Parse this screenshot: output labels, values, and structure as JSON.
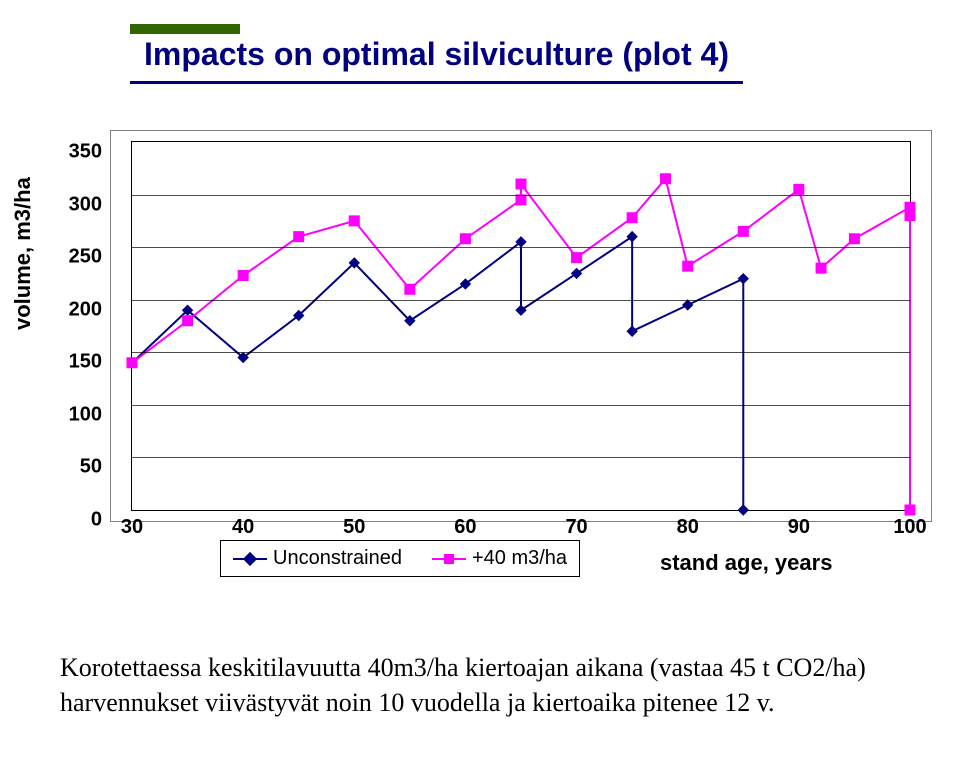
{
  "title": "Impacts on optimal silviculture (plot 4)",
  "title_color": "#000080",
  "title_fontsize": 32,
  "title_underline_color": "#000080",
  "title_accent_bar_color": "#336600",
  "chart": {
    "type": "line",
    "background_color": "#ffffff",
    "border_color": "#808080",
    "inner_border_color": "#000000",
    "grid_color": "#000000",
    "ylabel": "volume, m3/ha",
    "ylabel_fontsize": 22,
    "ylim": [
      0,
      350
    ],
    "ytick_step": 50,
    "yticks": [
      0,
      50,
      100,
      150,
      200,
      250,
      300,
      350
    ],
    "xlim": [
      30,
      100
    ],
    "xtick_step": 10,
    "xticks": [
      30,
      40,
      50,
      60,
      70,
      80,
      90,
      100
    ],
    "xaxis_title": "stand age, years",
    "xaxis_title_fontsize": 22,
    "tick_fontsize": 20,
    "tick_fontweight": "bold",
    "marker_size": 10,
    "line_width": 2,
    "series": [
      {
        "name": "Unconstrained",
        "color": "#000080",
        "marker": "diamond",
        "data": [
          {
            "x": 30,
            "y": 140
          },
          {
            "x": 35,
            "y": 190
          },
          {
            "x": 40,
            "y": 145
          },
          {
            "x": 45,
            "y": 185
          },
          {
            "x": 50,
            "y": 235
          },
          {
            "x": 55,
            "y": 180
          },
          {
            "x": 60,
            "y": 215
          },
          {
            "x": 65,
            "y": 255
          },
          {
            "x": 65,
            "y": 190
          },
          {
            "x": 70,
            "y": 225
          },
          {
            "x": 75,
            "y": 260
          },
          {
            "x": 75,
            "y": 170
          },
          {
            "x": 80,
            "y": 195
          },
          {
            "x": 85,
            "y": 220
          },
          {
            "x": 85,
            "y": 0
          }
        ]
      },
      {
        "name": "+40 m3/ha",
        "color": "#ff00ff",
        "marker": "square",
        "data": [
          {
            "x": 30,
            "y": 140
          },
          {
            "x": 35,
            "y": 180
          },
          {
            "x": 40,
            "y": 223
          },
          {
            "x": 45,
            "y": 260
          },
          {
            "x": 50,
            "y": 275
          },
          {
            "x": 55,
            "y": 210
          },
          {
            "x": 60,
            "y": 258
          },
          {
            "x": 65,
            "y": 295
          },
          {
            "x": 65,
            "y": 310
          },
          {
            "x": 70,
            "y": 240
          },
          {
            "x": 75,
            "y": 278
          },
          {
            "x": 78,
            "y": 315
          },
          {
            "x": 80,
            "y": 232
          },
          {
            "x": 85,
            "y": 265
          },
          {
            "x": 90,
            "y": 305
          },
          {
            "x": 92,
            "y": 230
          },
          {
            "x": 95,
            "y": 258
          },
          {
            "x": 100,
            "y": 288
          },
          {
            "x": 100,
            "y": 280
          },
          {
            "x": 100,
            "y": 0
          }
        ]
      }
    ],
    "legend": {
      "items": [
        "Unconstrained",
        "+40 m3/ha"
      ],
      "fontsize": 20,
      "border_color": "#000000",
      "background": "#ffffff"
    }
  },
  "caption": "Korotettaessa keskitilavuutta 40m3/ha kiertoajan aikana (vastaa 45 t CO2/ha) harvennukset viivästyvät noin 10 vuodella ja kiertoaika pitenee 12 v.",
  "caption_fontsize": 26,
  "caption_fontfamily": "Times New Roman"
}
